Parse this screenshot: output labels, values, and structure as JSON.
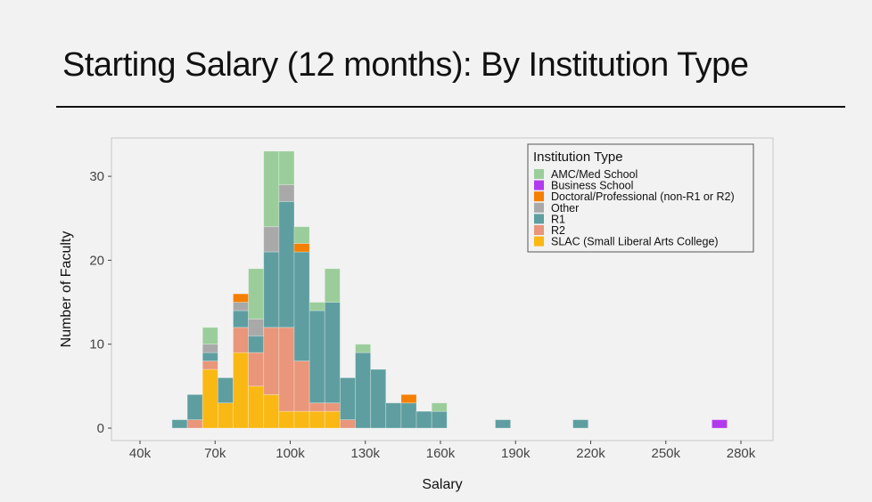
{
  "slide_title": "Starting Salary (12 months): By Institution Type",
  "chart_data": {
    "type": "bar",
    "stacked": true,
    "title": "Starting Salary (12 months): By Institution Type",
    "xlabel": "Salary",
    "ylabel": "Number of Faculty",
    "xlim": [
      30000,
      290000
    ],
    "ylim": [
      -1.5,
      34.5
    ],
    "xticks": [
      40000,
      70000,
      100000,
      130000,
      160000,
      190000,
      220000,
      250000,
      280000
    ],
    "xtick_labels": [
      "40k",
      "70k",
      "100k",
      "130k",
      "160k",
      "190k",
      "220k",
      "250k",
      "280k"
    ],
    "yticks": [
      0,
      10,
      20,
      30
    ],
    "ytick_labels": [
      "0",
      "10",
      "20",
      "30"
    ],
    "bin_width": 6100,
    "legend": {
      "title": "Institution Type",
      "placement": "top-right",
      "entries": [
        "AMC/Med School",
        "Business School",
        "Doctoral/Professional (non-R1 or R2)",
        "Other",
        "R1",
        "R2",
        "SLAC (Small Liberal Arts College)"
      ]
    },
    "colors": {
      "AMC/Med School": "#9bcd9b",
      "Business School": "#b23aee",
      "Doctoral/Professional (non-R1 or R2)": "#f57f00",
      "Other": "#a9a9a9",
      "R1": "#5f9ea0",
      "R2": "#e9967a",
      "SLAC (Small Liberal Arts College)": "#f9b814"
    },
    "stack_order": [
      "SLAC (Small Liberal Arts College)",
      "R2",
      "R1",
      "Other",
      "Doctoral/Professional (non-R1 or R2)",
      "Business School",
      "AMC/Med School"
    ],
    "bins": [
      {
        "start": 52800,
        "counts": {
          "R1": 1
        }
      },
      {
        "start": 58900,
        "counts": {
          "R2": 1,
          "R1": 3
        }
      },
      {
        "start": 65000,
        "counts": {
          "SLAC (Small Liberal Arts College)": 7,
          "R2": 1,
          "R1": 1,
          "Other": 1,
          "AMC/Med School": 2
        }
      },
      {
        "start": 71100,
        "counts": {
          "SLAC (Small Liberal Arts College)": 3,
          "R1": 3
        }
      },
      {
        "start": 77200,
        "counts": {
          "SLAC (Small Liberal Arts College)": 9,
          "R2": 3,
          "R1": 2,
          "Other": 1,
          "Doctoral/Professional (non-R1 or R2)": 1
        }
      },
      {
        "start": 83300,
        "counts": {
          "SLAC (Small Liberal Arts College)": 5,
          "R2": 4,
          "R1": 2,
          "Other": 2,
          "AMC/Med School": 6
        }
      },
      {
        "start": 89400,
        "counts": {
          "SLAC (Small Liberal Arts College)": 4,
          "R2": 8,
          "R1": 9,
          "Other": 3,
          "AMC/Med School": 9
        }
      },
      {
        "start": 95500,
        "counts": {
          "SLAC (Small Liberal Arts College)": 2,
          "R2": 10,
          "R1": 15,
          "Other": 2,
          "AMC/Med School": 4
        }
      },
      {
        "start": 101600,
        "counts": {
          "SLAC (Small Liberal Arts College)": 2,
          "R2": 6,
          "R1": 13,
          "Doctoral/Professional (non-R1 or R2)": 1,
          "AMC/Med School": 2
        }
      },
      {
        "start": 107700,
        "counts": {
          "SLAC (Small Liberal Arts College)": 2,
          "R2": 1,
          "R1": 11,
          "AMC/Med School": 1
        }
      },
      {
        "start": 113800,
        "counts": {
          "SLAC (Small Liberal Arts College)": 2,
          "R2": 1,
          "R1": 12,
          "AMC/Med School": 4
        }
      },
      {
        "start": 119900,
        "counts": {
          "R2": 1,
          "R1": 5
        }
      },
      {
        "start": 126000,
        "counts": {
          "R1": 9,
          "AMC/Med School": 1
        }
      },
      {
        "start": 132100,
        "counts": {
          "R1": 7
        }
      },
      {
        "start": 138200,
        "counts": {
          "R1": 3
        }
      },
      {
        "start": 144300,
        "counts": {
          "R1": 3,
          "Doctoral/Professional (non-R1 or R2)": 1
        }
      },
      {
        "start": 150400,
        "counts": {
          "R1": 2
        }
      },
      {
        "start": 156500,
        "counts": {
          "R1": 2,
          "AMC/Med School": 1
        }
      },
      {
        "start": 181900,
        "counts": {
          "R1": 1
        }
      },
      {
        "start": 212900,
        "counts": {
          "R1": 1
        }
      },
      {
        "start": 268400,
        "counts": {
          "Business School": 1
        }
      }
    ]
  }
}
